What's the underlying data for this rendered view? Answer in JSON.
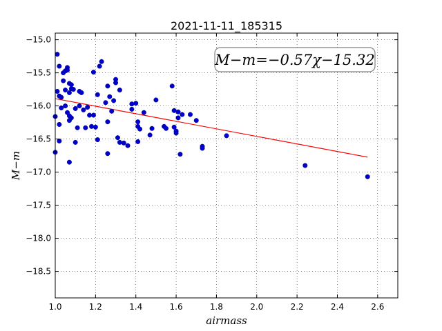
{
  "chart_data": {
    "type": "scatter",
    "title": "2021-11-11_185315",
    "xlabel": "airmass",
    "ylabel": "M−m",
    "xlim": [
      1.0,
      2.7
    ],
    "ylim": [
      -18.9,
      -14.9
    ],
    "y_inverted": true,
    "xticks": [
      "1.0",
      "1.2",
      "1.4",
      "1.6",
      "1.8",
      "2.0",
      "2.2",
      "2.4",
      "2.6"
    ],
    "xtick_values": [
      1.0,
      1.2,
      1.4,
      1.6,
      1.8,
      2.0,
      2.2,
      2.4,
      2.6
    ],
    "yticks": [
      "−15.0",
      "−15.5",
      "−16.0",
      "−16.5",
      "−17.0",
      "−17.5",
      "−18.0",
      "−18.5"
    ],
    "ytick_values": [
      -15.0,
      -15.5,
      -16.0,
      -16.5,
      -17.0,
      -17.5,
      -18.0,
      -18.5
    ],
    "grid": true,
    "annotation": "M−m=−0.57χ−15.32",
    "fit_line": {
      "slope": -0.57,
      "intercept": -15.32,
      "x": [
        1.0,
        2.55
      ],
      "color": "#ff0000"
    },
    "point_color": "#0000cc",
    "series": [
      {
        "points": [
          [
            1.01,
            -15.22
          ],
          [
            1.02,
            -15.4
          ],
          [
            1.04,
            -15.5
          ],
          [
            1.05,
            -15.47
          ],
          [
            1.06,
            -15.42
          ],
          [
            1.06,
            -15.46
          ],
          [
            1.01,
            -15.78
          ],
          [
            1.02,
            -15.85
          ],
          [
            1.03,
            -15.87
          ],
          [
            1.04,
            -15.62
          ],
          [
            1.05,
            -15.76
          ],
          [
            1.07,
            -15.66
          ],
          [
            1.08,
            -15.68
          ],
          [
            1.07,
            -15.8
          ],
          [
            1.08,
            -15.74
          ],
          [
            1.09,
            -15.75
          ],
          [
            1.03,
            -16.03
          ],
          [
            1.05,
            -16.0
          ],
          [
            1.06,
            -16.1
          ],
          [
            1.07,
            -16.15
          ],
          [
            1.07,
            -16.22
          ],
          [
            1.08,
            -16.18
          ],
          [
            1.0,
            -16.16
          ],
          [
            1.02,
            -16.28
          ],
          [
            1.0,
            -16.7
          ],
          [
            1.02,
            -16.53
          ],
          [
            1.07,
            -16.85
          ],
          [
            1.1,
            -16.55
          ],
          [
            1.1,
            -16.04
          ],
          [
            1.11,
            -16.33
          ],
          [
            1.12,
            -15.78
          ],
          [
            1.13,
            -15.8
          ],
          [
            1.12,
            -16.0
          ],
          [
            1.14,
            -16.06
          ],
          [
            1.15,
            -16.33
          ],
          [
            1.16,
            -16.02
          ],
          [
            1.17,
            -16.14
          ],
          [
            1.18,
            -16.31
          ],
          [
            1.19,
            -15.49
          ],
          [
            1.19,
            -16.14
          ],
          [
            1.2,
            -16.32
          ],
          [
            1.21,
            -16.51
          ],
          [
            1.21,
            -15.83
          ],
          [
            1.22,
            -15.4
          ],
          [
            1.23,
            -15.33
          ],
          [
            1.25,
            -15.95
          ],
          [
            1.26,
            -15.7
          ],
          [
            1.26,
            -16.24
          ],
          [
            1.26,
            -16.72
          ],
          [
            1.27,
            -15.86
          ],
          [
            1.28,
            -16.08
          ],
          [
            1.29,
            -15.92
          ],
          [
            1.3,
            -15.6
          ],
          [
            1.3,
            -15.65
          ],
          [
            1.31,
            -16.48
          ],
          [
            1.32,
            -15.76
          ],
          [
            1.32,
            -16.55
          ],
          [
            1.34,
            -16.56
          ],
          [
            1.36,
            -16.6
          ],
          [
            1.38,
            -15.97
          ],
          [
            1.38,
            -16.05
          ],
          [
            1.4,
            -15.96
          ],
          [
            1.41,
            -16.24
          ],
          [
            1.41,
            -16.31
          ],
          [
            1.41,
            -16.54
          ],
          [
            1.42,
            -16.35
          ],
          [
            1.44,
            -16.1
          ],
          [
            1.47,
            -16.44
          ],
          [
            1.48,
            -16.34
          ],
          [
            1.5,
            -15.91
          ],
          [
            1.54,
            -16.31
          ],
          [
            1.55,
            -16.34
          ],
          [
            1.58,
            -15.7
          ],
          [
            1.59,
            -16.07
          ],
          [
            1.59,
            -16.32
          ],
          [
            1.6,
            -16.38
          ],
          [
            1.6,
            -16.41
          ],
          [
            1.61,
            -16.09
          ],
          [
            1.61,
            -16.18
          ],
          [
            1.62,
            -16.73
          ],
          [
            1.63,
            -16.13
          ],
          [
            1.67,
            -16.13
          ],
          [
            1.7,
            -16.22
          ],
          [
            1.73,
            -16.61
          ],
          [
            1.73,
            -16.64
          ],
          [
            1.85,
            -16.45
          ],
          [
            2.24,
            -16.9
          ],
          [
            2.55,
            -17.07
          ]
        ]
      }
    ]
  }
}
